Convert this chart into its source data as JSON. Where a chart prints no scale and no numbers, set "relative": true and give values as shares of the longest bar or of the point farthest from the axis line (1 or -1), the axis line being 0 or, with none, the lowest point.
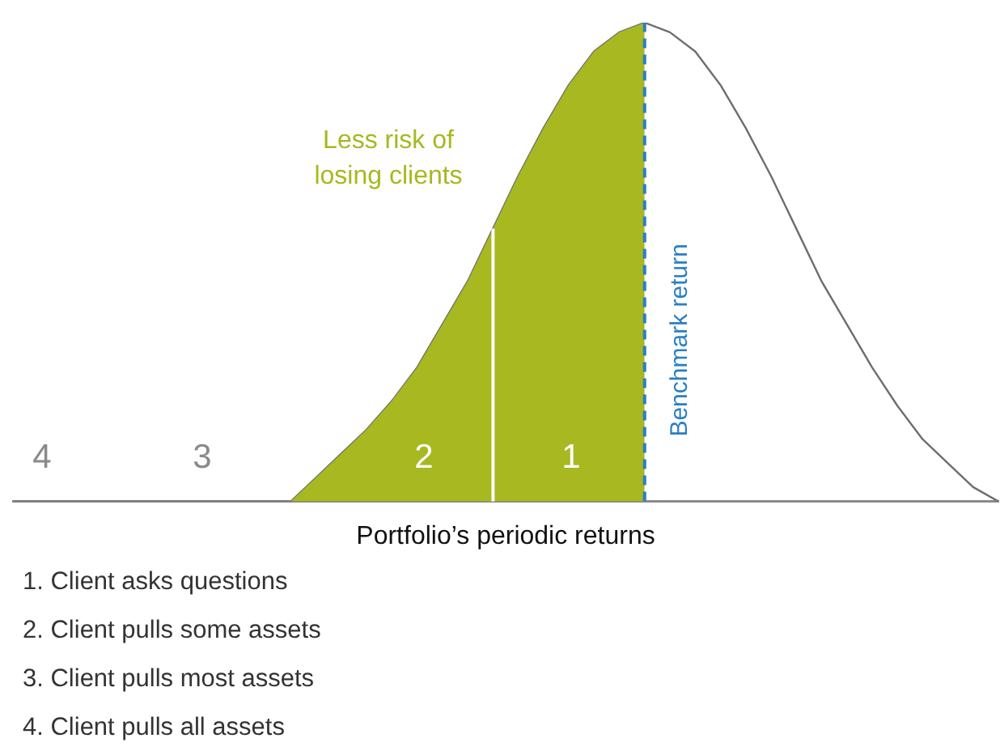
{
  "chart_data": {
    "type": "line",
    "relative": true,
    "xlabel": "Portfolio’s periodic returns",
    "categories": [
      null,
      null,
      null,
      null,
      null,
      null,
      null,
      null,
      null,
      null,
      null,
      null,
      null,
      null,
      null,
      null,
      null,
      null,
      null,
      null,
      null,
      null,
      null,
      null,
      null,
      null,
      null,
      null,
      null,
      null,
      null,
      null,
      null,
      null,
      null,
      null,
      null,
      null,
      null,
      null
    ],
    "tick_labels": false,
    "grid": false,
    "series": [
      {
        "type": "area",
        "color": "#a8b820",
        "values": [
          0,
          0,
          0,
          0,
          0,
          0,
          0,
          0,
          0,
          0,
          0,
          0,
          0.05,
          0.1,
          0.15,
          0.21,
          0.28,
          0.37,
          0.46,
          0.57,
          null,
          null,
          null,
          null,
          null,
          null,
          null,
          null,
          null,
          null,
          null,
          null,
          null,
          null,
          null,
          null,
          null,
          null,
          null,
          null
        ]
      },
      {
        "type": "area",
        "color": "#a8b820",
        "values": [
          null,
          null,
          null,
          null,
          null,
          null,
          null,
          null,
          null,
          null,
          null,
          null,
          null,
          null,
          null,
          null,
          null,
          null,
          null,
          0.57,
          0.68,
          0.78,
          0.87,
          0.94,
          0.98,
          1,
          null,
          null,
          null,
          null,
          null,
          null,
          null,
          null,
          null,
          null,
          null,
          null,
          null,
          null
        ]
      },
      {
        "color": "#6e6e6e",
        "values": [
          0,
          0,
          0,
          0,
          0,
          0,
          0,
          0,
          0,
          0,
          0,
          0,
          0.05,
          0.1,
          0.15,
          0.21,
          0.28,
          0.37,
          0.46,
          0.57,
          0.68,
          0.78,
          0.87,
          0.94,
          0.98,
          1,
          0.98,
          0.94,
          0.87,
          0.78,
          0.68,
          0.57,
          0.46,
          0.37,
          0.28,
          0.2,
          0.13,
          0.08,
          0.03,
          0
        ]
      }
    ],
    "ref_lines": [
      {
        "axis": "x",
        "label": "Benchmark return",
        "color": "#2a7fc4",
        "line_style": "dashed"
      }
    ],
    "annotations": [
      "4",
      "3",
      "2",
      "1",
      "Less risk of\nlosing clients",
      "1. Client asks questions",
      "2. Client pulls some assets",
      "3. Client pulls most assets",
      "4. Client pulls all assets"
    ]
  }
}
